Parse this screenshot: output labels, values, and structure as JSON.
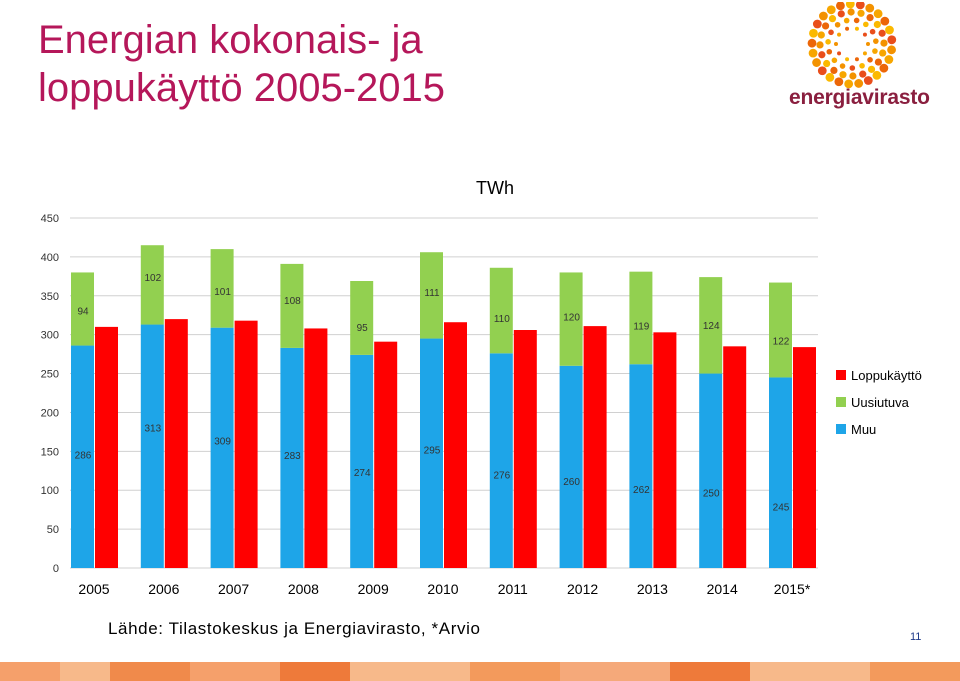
{
  "slide": {
    "title": "Energian kokonais- ja loppukäyttö 2005-2015",
    "source": "Lähde: Tilastokeskus ja Energiavirasto, *Arvio",
    "page_number": "11",
    "logo_text": "energiavirasto"
  },
  "colors": {
    "title": "#b5175a",
    "muu": "#1ea5e8",
    "uusiutuva": "#92d050",
    "loppukaytto": "#ff0000",
    "logo_orange": "#f39200",
    "logo_text": "#8a1f3f"
  },
  "chart_data": {
    "type": "bar",
    "unit_label": "TWh",
    "categories": [
      "2005",
      "2006",
      "2007",
      "2008",
      "2009",
      "2010",
      "2011",
      "2012",
      "2013",
      "2014",
      "2015*"
    ],
    "series": [
      {
        "name": "Muu",
        "stack": "total",
        "color": "#1ea5e8",
        "values": [
          286,
          313,
          309,
          283,
          274,
          295,
          276,
          260,
          262,
          250,
          245
        ]
      },
      {
        "name": "Uusiutuva",
        "stack": "total",
        "color": "#92d050",
        "values": [
          94,
          102,
          101,
          108,
          95,
          111,
          110,
          120,
          119,
          124,
          122
        ]
      },
      {
        "name": "Loppukäyttö",
        "stack": "final",
        "color": "#ff0000",
        "values": [
          310,
          320,
          318,
          308,
          291,
          316,
          306,
          311,
          303,
          285,
          284
        ]
      }
    ],
    "ylim": [
      0,
      450
    ],
    "yticks": [
      0,
      50,
      100,
      150,
      200,
      250,
      300,
      350,
      400,
      450
    ],
    "legend_order": [
      "Loppukäyttö",
      "Uusiutuva",
      "Muu"
    ],
    "legend_position": "right",
    "grid": true
  }
}
